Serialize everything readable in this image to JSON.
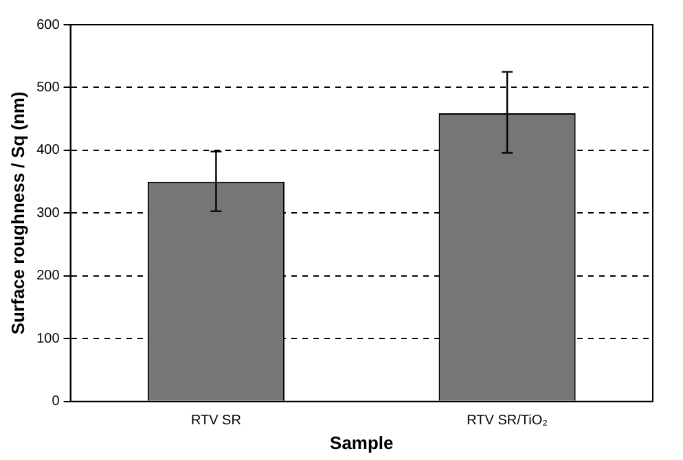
{
  "chart_data": {
    "type": "bar",
    "xlabel": "Sample",
    "ylabel": "Surface roughness / Sq (nm)",
    "categories": [
      "RTV SR",
      "RTV SR/TiO₂"
    ],
    "values": [
      350,
      459
    ],
    "color": "#767676",
    "errors": [
      [
        303,
        398
      ],
      [
        396,
        525
      ]
    ],
    "ylim": [
      0,
      600
    ],
    "yticks": [
      0,
      100,
      200,
      300,
      400,
      500,
      600
    ],
    "grid": "y",
    "legend": false
  }
}
